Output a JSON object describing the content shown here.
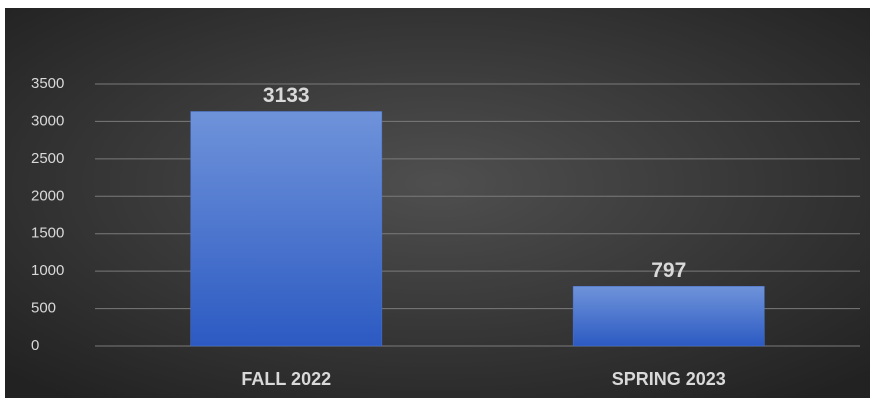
{
  "chart_data": {
    "type": "bar",
    "categories": [
      "FALL 2022",
      "SPRING 2023"
    ],
    "values": [
      3133,
      797
    ],
    "color": "#4a74d0",
    "ylim": [
      0,
      3500
    ],
    "yticks": [
      0,
      500,
      1000,
      1500,
      2000,
      2500,
      3000,
      3500
    ],
    "grid": true
  }
}
